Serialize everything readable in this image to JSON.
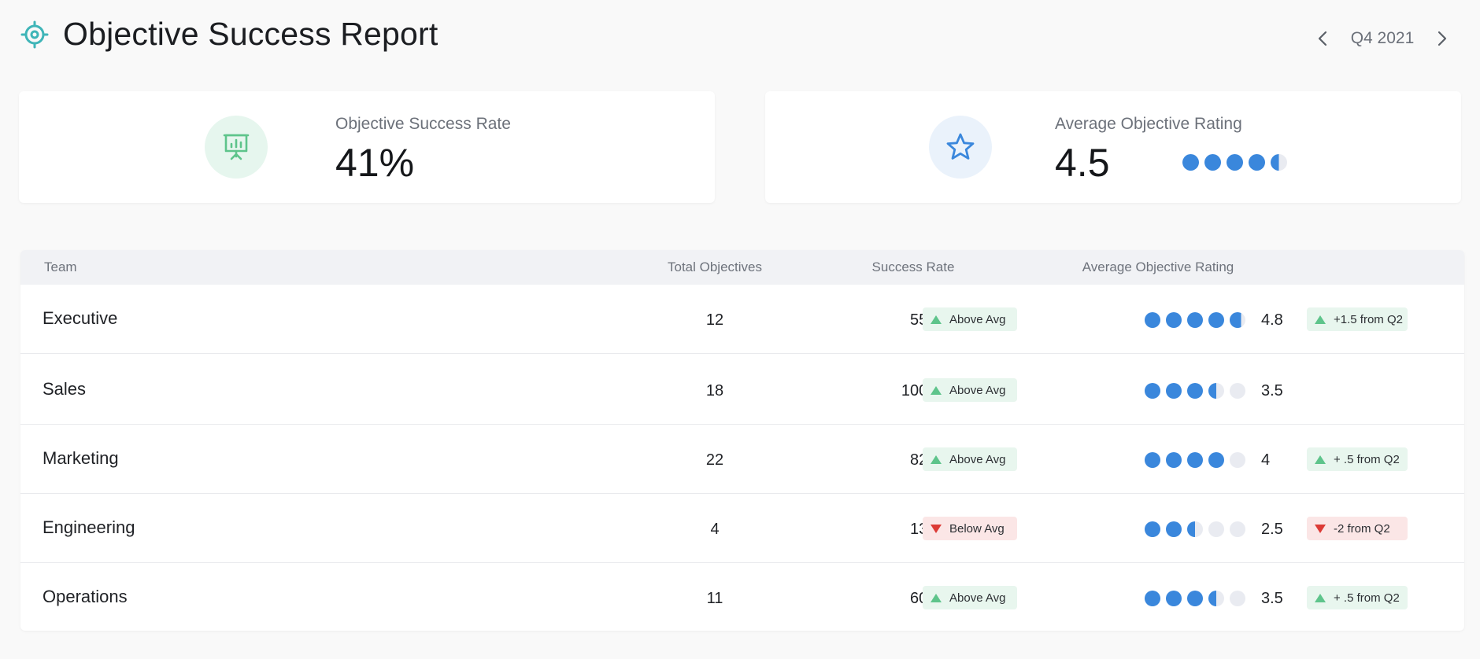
{
  "header": {
    "title": "Objective Success Report",
    "period": "Q4 2021",
    "logo_icon": "target-icon",
    "prev_icon": "chevron-left-icon",
    "next_icon": "chevron-right-icon"
  },
  "cards": [
    {
      "label": "Objective Success Rate",
      "value": "41%",
      "icon": "presentation-chart-icon",
      "icon_color": "#5ec48b"
    },
    {
      "label": "Average Objective Rating",
      "value": "4.5",
      "icon": "star-icon",
      "icon_color": "#3a87dc",
      "rating": 4.5
    }
  ],
  "table": {
    "columns": [
      "Team",
      "Total Objectives",
      "Success Rate",
      "Average Objective Rating"
    ],
    "rows": [
      {
        "team": "Executive",
        "total": "12",
        "rate": "55%",
        "status": "Above Avg",
        "status_dir": "up",
        "rating": "4.8",
        "rating_value": 4.8,
        "change": "+1.5 from Q2",
        "change_dir": "up"
      },
      {
        "team": "Sales",
        "total": "18",
        "rate": "100%",
        "status": "Above Avg",
        "status_dir": "up",
        "rating": "3.5",
        "rating_value": 3.5,
        "change": "",
        "change_dir": ""
      },
      {
        "team": "Marketing",
        "total": "22",
        "rate": "82%",
        "status": "Above Avg",
        "status_dir": "up",
        "rating": "4",
        "rating_value": 4,
        "change": "+ .5 from Q2",
        "change_dir": "up"
      },
      {
        "team": "Engineering",
        "total": "4",
        "rate": "13%",
        "status": "Below Avg",
        "status_dir": "down",
        "rating": "2.5",
        "rating_value": 2.5,
        "change": "-2 from Q2",
        "change_dir": "down"
      },
      {
        "team": "Operations",
        "total": "11",
        "rate": "60%",
        "status": "Above Avg",
        "status_dir": "up",
        "rating": "3.5",
        "rating_value": 3.5,
        "change": "+ .5 from Q2",
        "change_dir": "up"
      }
    ]
  },
  "colors": {
    "accent_teal": "#3fb5b8",
    "rating_blue": "#3a87dc",
    "positive_green": "#5ec48b",
    "negative_red": "#dc3b36"
  }
}
